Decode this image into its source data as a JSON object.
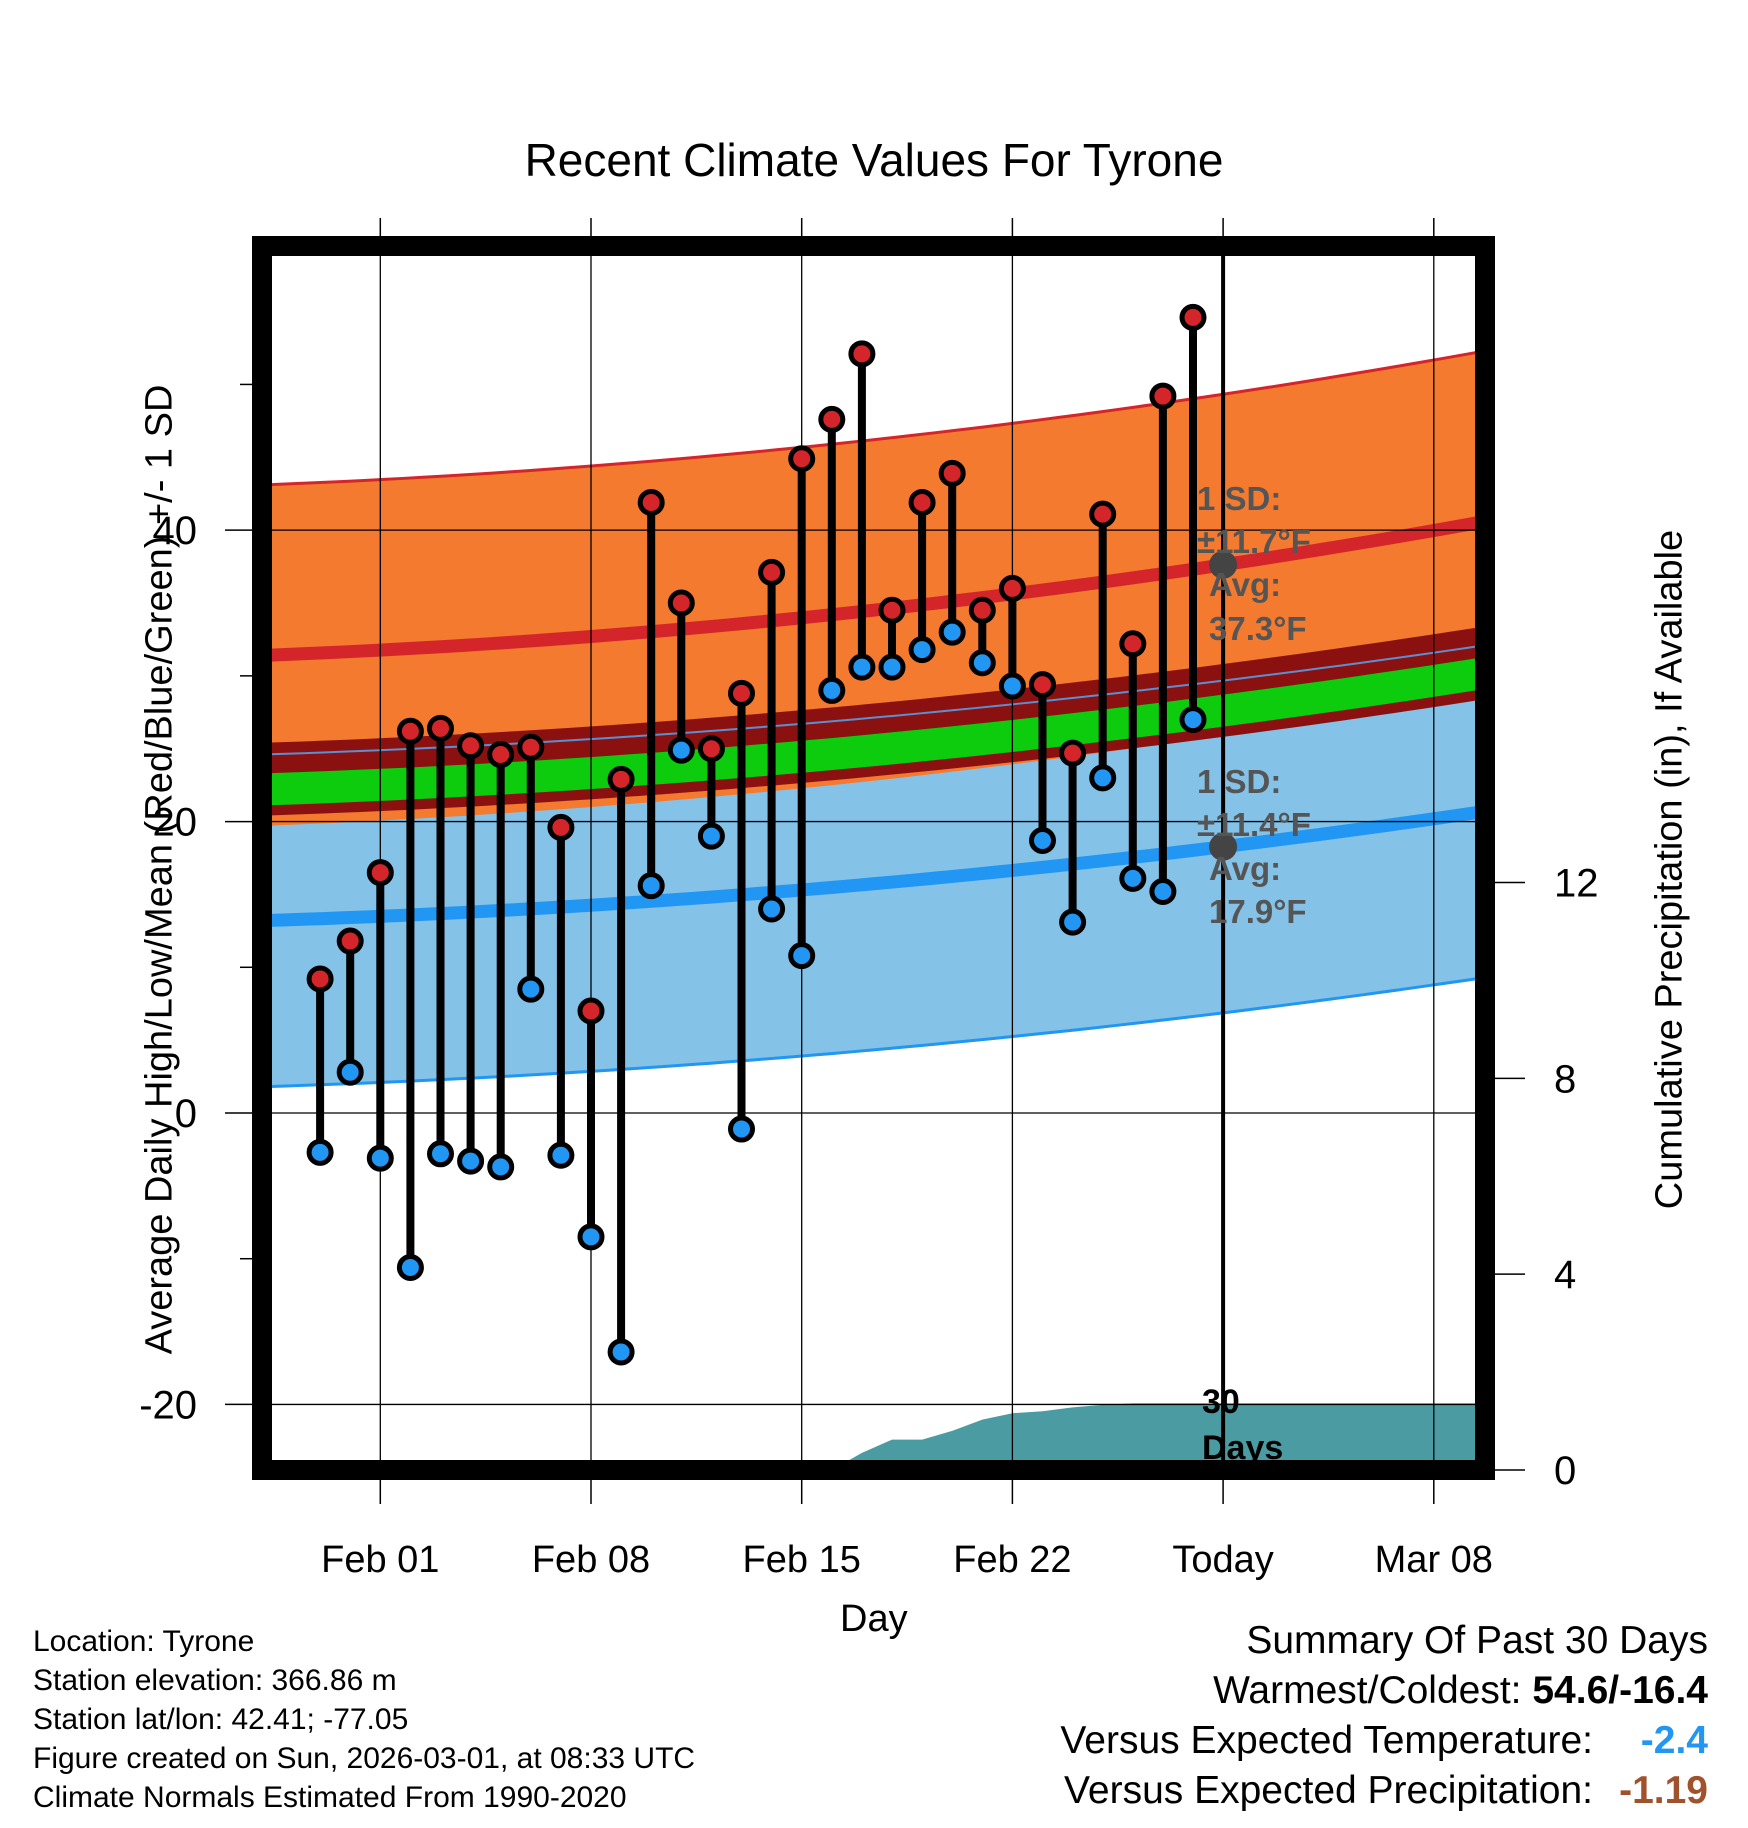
{
  "title": "Recent Climate Values For Tyrone",
  "chart_data": {
    "type": "line",
    "title": "Recent Climate Values For Tyrone",
    "xlabel": "Day",
    "ylabel_left": "Average Daily High/Low/Mean (Red/Blue/Green) +/- 1 SD",
    "ylabel_right": "Cumulative Precipitation (in), If Available",
    "ylim_left": [
      -24.5,
      59.5
    ],
    "ylim_right": [
      0,
      25
    ],
    "yticks_left": [
      "-20",
      "0",
      "20",
      "40"
    ],
    "yticks_right": [
      "0",
      "4",
      "8",
      "12"
    ],
    "xticks": [
      "Feb 01",
      "Feb 08",
      "Feb 15",
      "Feb 22",
      "Today",
      "Mar 08"
    ],
    "x_start": "Jan 29",
    "today_index": 31,
    "daily": {
      "highs": [
        9.2,
        11.8,
        16.5,
        26.2,
        26.4,
        25.2,
        24.6,
        25.1,
        19.6,
        7.0,
        22.9,
        41.9,
        35.0,
        25.0,
        28.8,
        37.1,
        44.9,
        47.6,
        52.1,
        34.5,
        41.9,
        43.9,
        34.5,
        36.0,
        29.4,
        24.7,
        41.1,
        32.2,
        49.2,
        54.6
      ],
      "lows": [
        -2.7,
        2.8,
        -3.1,
        -10.6,
        -2.8,
        -3.3,
        -3.7,
        8.5,
        -2.9,
        -8.5,
        -16.4,
        15.6,
        24.9,
        19.0,
        -1.1,
        14.0,
        10.8,
        29.0,
        30.6,
        30.6,
        31.8,
        33.0,
        30.9,
        29.3,
        18.7,
        13.1,
        23.0,
        16.1,
        15.2,
        27.0
      ]
    },
    "normals": {
      "high_avg": [
        31.4,
        40.6
      ],
      "high_sd": 11.7,
      "low_avg": [
        13.2,
        20.7
      ],
      "low_sd": 11.4,
      "mean_avg": [
        22.2,
        30.2
      ]
    },
    "precip_cumulative": [
      0,
      0,
      0,
      0,
      0,
      0,
      0,
      0,
      0,
      0,
      0,
      0,
      0,
      0,
      0,
      0,
      0,
      0,
      0,
      0.35,
      0.62,
      0.62,
      0.8,
      1.03,
      1.16,
      1.2,
      1.28,
      1.33,
      1.36,
      1.36,
      1.36,
      1.36,
      1.36,
      1.36,
      1.36,
      1.36,
      1.36,
      1.36,
      1.36,
      1.36
    ],
    "annotations": {
      "high_sd_label": "1 SD:",
      "high_sd_value": "±11.7°F",
      "high_avg_label": "Avg:",
      "high_avg_value": "37.3°F",
      "low_sd_label": "1 SD:",
      "low_sd_value": "±11.4°F",
      "low_avg_label": "Avg:",
      "low_avg_value": "17.9°F",
      "period_line1": "30",
      "period_line2": "Days"
    },
    "colors": {
      "high_band": "#f47a2f",
      "high_line": "#d4262a",
      "low_band": "#84c2e8",
      "low_line": "#2196f3",
      "mean_band": "#0dcc0d",
      "mean_edge": "#8b1111",
      "precip": "#4a9ba2",
      "high_dot": "#d4262a",
      "low_dot": "#2196f3",
      "annot": "#555555"
    }
  },
  "footer": {
    "location": "Location: Tyrone",
    "elevation": "Station elevation: 366.86 m",
    "latlon": "Station lat/lon: 42.41; -77.05",
    "created": "Figure created on Sun, 2026-03-01, at 08:33 UTC",
    "normals": "Climate Normals Estimated From 1990-2020"
  },
  "summary": {
    "heading": "Summary Of Past 30 Days",
    "warm_cold_label": "Warmest/Coldest: ",
    "warm_cold_value": "54.6/-16.4",
    "temp_label": "Versus Expected Temperature:",
    "temp_value": "-2.4",
    "temp_color": "#2196f3",
    "precip_label": "Versus Expected Precipitation:",
    "precip_value": "-1.19",
    "precip_color": "#a0522d"
  }
}
